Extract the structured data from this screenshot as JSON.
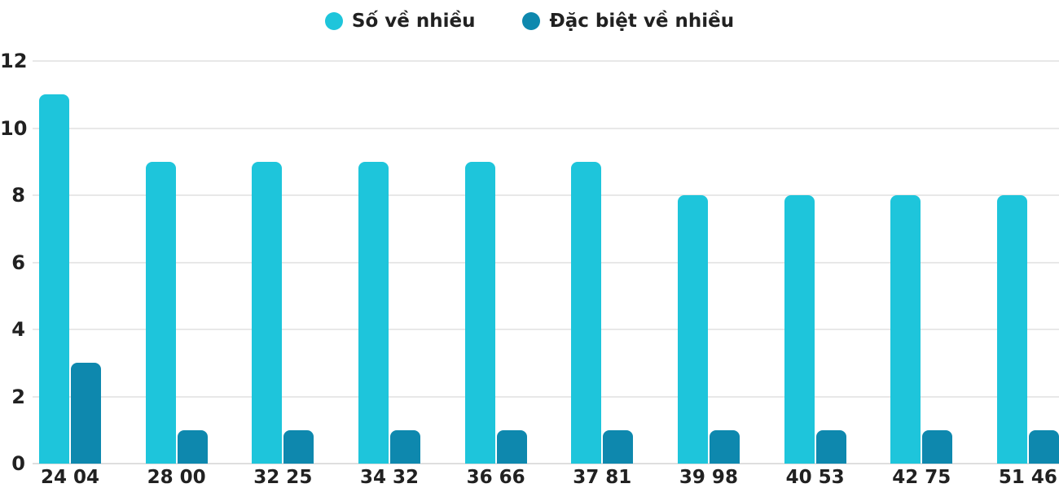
{
  "chart_data": {
    "type": "bar",
    "title": "",
    "xlabel": "",
    "ylabel": "",
    "categories": [
      "24 04",
      "28 00",
      "32 25",
      "34 32",
      "36 66",
      "37 81",
      "39 98",
      "40 53",
      "42 75",
      "51 46"
    ],
    "series": [
      {
        "name": "Số về nhiều",
        "color": "#1EC5DB",
        "values": [
          11,
          9,
          9,
          9,
          9,
          9,
          8,
          8,
          8,
          8
        ]
      },
      {
        "name": "Đặc biệt về nhiều",
        "color": "#0E88AE",
        "values": [
          3,
          1,
          1,
          1,
          1,
          1,
          1,
          1,
          1,
          1
        ]
      }
    ],
    "ylim": [
      0,
      12
    ],
    "yticks": [
      0,
      2,
      4,
      6,
      8,
      10,
      12
    ],
    "grid": true,
    "legend_position": "top",
    "colors": {
      "series1": "#1EC5DB",
      "series2": "#0E88AE",
      "gridline": "#e8e8e8",
      "text": "#212121",
      "background": "#ffffff"
    }
  }
}
